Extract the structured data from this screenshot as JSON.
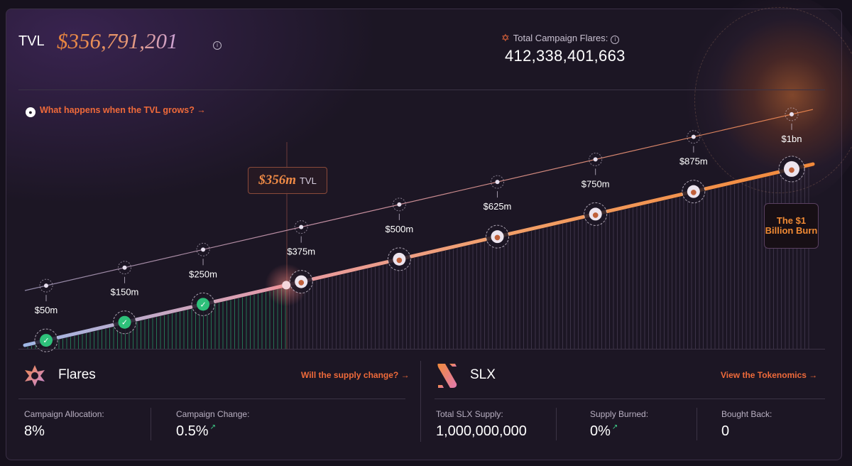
{
  "header": {
    "tvl_label": "TVL",
    "tvl_value": "$356,791,201",
    "info_icon": "info-icon",
    "flares_total_label": "Total Campaign Flares:",
    "flares_total_value": "412,338,401,663",
    "flares_icon": "star-icon"
  },
  "what_link": {
    "label": "What happens when the TVL grows? →",
    "icon": "flame-drop-icon"
  },
  "chart": {
    "current_value": "$356m",
    "current_unit": "TVL",
    "milestones": [
      {
        "label": "$50m",
        "tvl_m": 50,
        "reached": true
      },
      {
        "label": "$150m",
        "tvl_m": 150,
        "reached": true
      },
      {
        "label": "$250m",
        "tvl_m": 250,
        "reached": true
      },
      {
        "label": "$375m",
        "tvl_m": 375,
        "reached": false
      },
      {
        "label": "$500m",
        "tvl_m": 500,
        "reached": false
      },
      {
        "label": "$625m",
        "tvl_m": 625,
        "reached": false
      },
      {
        "label": "$750m",
        "tvl_m": 750,
        "reached": false
      },
      {
        "label": "$875m",
        "tvl_m": 875,
        "reached": false
      },
      {
        "label": "$1bn",
        "tvl_m": 1000,
        "reached": false
      }
    ],
    "current_tvl_m": 356,
    "burn_badge": "The $1 Billion Burn",
    "colors": {
      "reached": "#2ec07a",
      "progress_start": "#9fb7e6",
      "progress_mid": "#e79aa6",
      "progress_end": "#f2893a",
      "accent": "#ef6a3a"
    }
  },
  "flares": {
    "title": "Flares",
    "link": "Will the supply change? →",
    "stats": [
      {
        "label": "Campaign Allocation:",
        "value": "8%"
      },
      {
        "label": "Campaign Change:",
        "value": "0.5%",
        "trend": "↗"
      }
    ]
  },
  "slx": {
    "title": "SLX",
    "link": "View the Tokenomics →",
    "stats": [
      {
        "label": "Total SLX Supply:",
        "value": "1,000,000,000"
      },
      {
        "label": "Supply Burned:",
        "value": "0%",
        "trend": "↗"
      },
      {
        "label": "Bought Back:",
        "value": "0"
      }
    ]
  }
}
